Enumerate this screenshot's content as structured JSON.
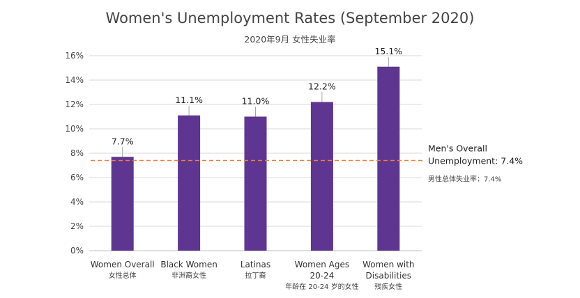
{
  "chart_data": {
    "type": "bar",
    "title": "Women's Unemployment Rates (September 2020)",
    "subtitle": "2020年9月 女性失业率",
    "categories": [
      {
        "lines": [
          "Women Overall"
        ],
        "sub": [
          "女性总体"
        ]
      },
      {
        "lines": [
          "Black Women"
        ],
        "sub": [
          "非洲裔女性"
        ]
      },
      {
        "lines": [
          "Latinas"
        ],
        "sub": [
          "拉丁裔"
        ]
      },
      {
        "lines": [
          "Women Ages",
          "20-24"
        ],
        "sub": [
          "年龄在 20-24 岁的女性"
        ]
      },
      {
        "lines": [
          "Women with",
          "Disabilities"
        ],
        "sub": [
          "残疾女性"
        ]
      }
    ],
    "values": [
      7.7,
      11.1,
      11.0,
      12.2,
      15.1
    ],
    "data_labels": [
      "7.7%",
      "11.1%",
      "11.0%",
      "12.2%",
      "15.1%"
    ],
    "ylim": [
      0,
      16
    ],
    "y_ticks": [
      0,
      2,
      4,
      6,
      8,
      10,
      12,
      14,
      16
    ],
    "y_tick_labels": [
      "0%",
      "2%",
      "4%",
      "6%",
      "8%",
      "10%",
      "12%",
      "14%",
      "16%"
    ],
    "grid": true,
    "bar_color": "#5e3591",
    "reference_line": {
      "value": 7.4,
      "color": "#ef7d3b",
      "style": "dashed",
      "label_lines": [
        "Men's Overall",
        "Unemployment: 7.4%"
      ],
      "sub": "男性总体失业率：7.4%"
    }
  }
}
